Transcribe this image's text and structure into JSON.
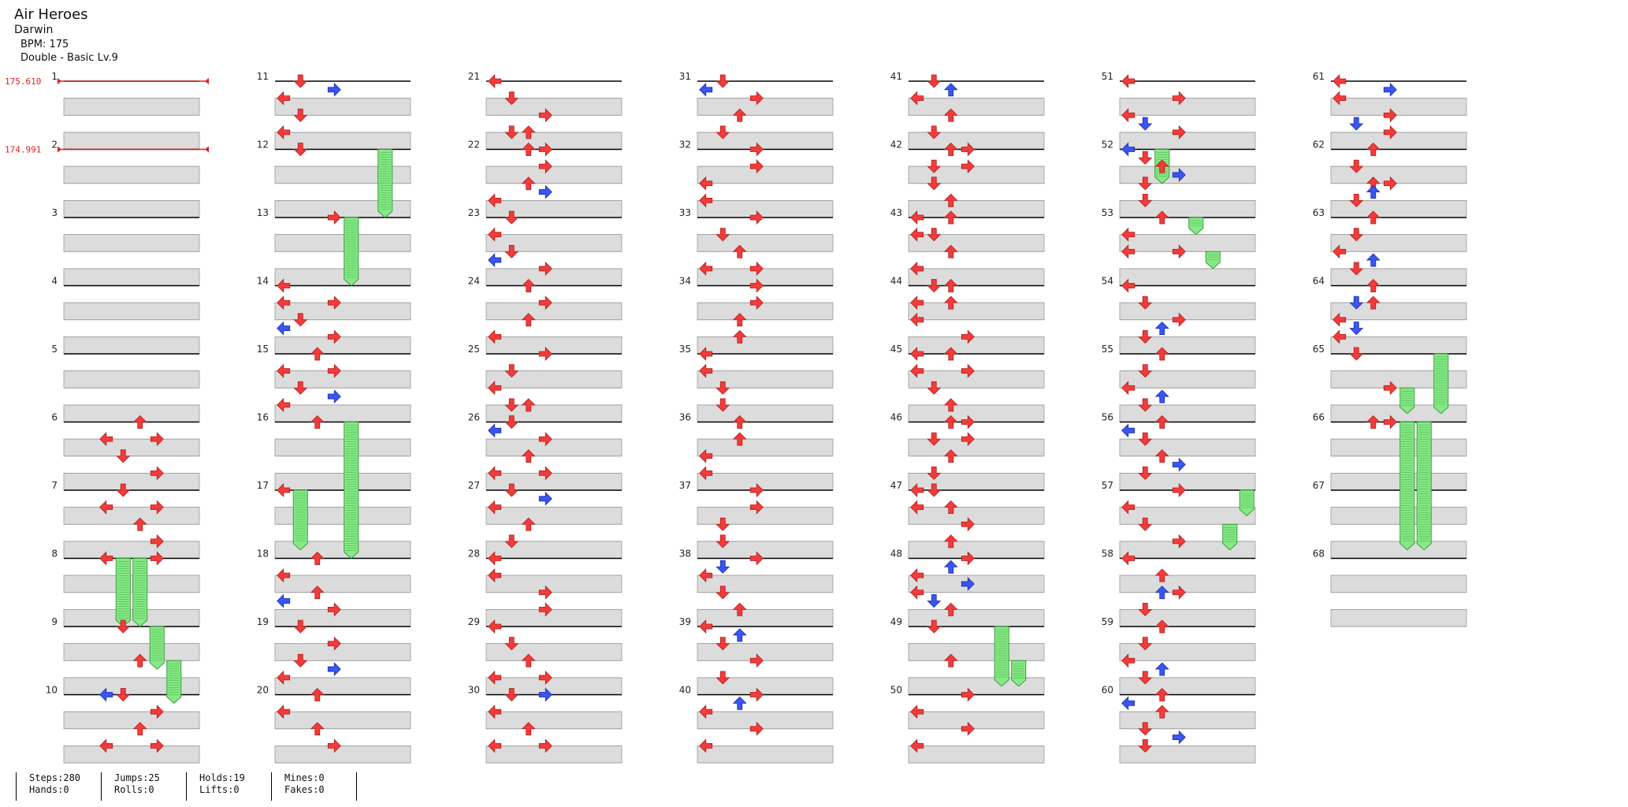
{
  "song": {
    "title": "Air Heroes",
    "artist": "Darwin",
    "bpm": "BPM: 175",
    "difficulty": "Double - Basic Lv.9"
  },
  "bpm_changes": [
    {
      "measure": 1,
      "label": "175.610"
    },
    {
      "measure": 2,
      "label": "174.991"
    }
  ],
  "measures_total": 68,
  "colors": {
    "note_red": "#f23b3b",
    "note_blue": "#3a55f0",
    "hold_green": "#86e886",
    "bpm_line": "#dd2222"
  },
  "notes": [
    {
      "m": 6,
      "b": 0,
      "d": "U"
    },
    {
      "m": 6,
      "b": 1,
      "d": "R"
    },
    {
      "m": 6,
      "b": 1,
      "d": "L"
    },
    {
      "m": 6,
      "b": 2,
      "d": "D"
    },
    {
      "m": 6,
      "b": 3,
      "d": "R"
    },
    {
      "m": 7,
      "b": 0,
      "d": "D"
    },
    {
      "m": 7,
      "b": 1,
      "d": "R"
    },
    {
      "m": 7,
      "b": 1,
      "d": "L"
    },
    {
      "m": 7,
      "b": 2,
      "d": "U"
    },
    {
      "m": 7,
      "b": 3,
      "d": "R"
    },
    {
      "m": 8,
      "b": 0,
      "d": "R"
    },
    {
      "m": 8,
      "b": 0,
      "d": "L"
    },
    {
      "m": 9,
      "b": 0,
      "d": "D"
    },
    {
      "m": 9,
      "b": 2,
      "d": "U"
    },
    {
      "m": 10,
      "b": 0,
      "d": "D"
    },
    {
      "m": 10,
      "b": 0,
      "d": "L",
      "c": "b"
    },
    {
      "m": 10,
      "b": 1,
      "d": "R"
    },
    {
      "m": 10,
      "b": 2,
      "d": "U"
    },
    {
      "m": 10,
      "b": 3,
      "d": "L"
    },
    {
      "m": 10,
      "b": 3,
      "d": "R"
    },
    {
      "m": 11,
      "b": 0,
      "d": "D"
    },
    {
      "m": 11,
      "b": 0.5,
      "d": "R",
      "c": "b"
    },
    {
      "m": 11,
      "b": 1,
      "d": "L"
    },
    {
      "m": 11,
      "b": 2,
      "d": "D"
    },
    {
      "m": 11,
      "b": 3,
      "d": "L"
    },
    {
      "m": 12,
      "b": 0,
      "d": "D"
    },
    {
      "m": 13,
      "b": 0,
      "d": "R"
    },
    {
      "m": 14,
      "b": 0,
      "d": "L"
    },
    {
      "m": 14,
      "b": 1,
      "d": "L"
    },
    {
      "m": 14,
      "b": 1,
      "d": "R"
    },
    {
      "m": 14,
      "b": 2,
      "d": "D"
    },
    {
      "m": 14,
      "b": 2.5,
      "d": "L",
      "c": "b"
    },
    {
      "m": 14,
      "b": 3,
      "d": "R"
    },
    {
      "m": 15,
      "b": 0,
      "d": "U"
    },
    {
      "m": 15,
      "b": 1,
      "d": "L"
    },
    {
      "m": 15,
      "b": 1,
      "d": "R"
    },
    {
      "m": 15,
      "b": 2,
      "d": "D"
    },
    {
      "m": 15,
      "b": 2.5,
      "d": "R",
      "c": "b"
    },
    {
      "m": 15,
      "b": 3,
      "d": "L"
    },
    {
      "m": 16,
      "b": 0,
      "d": "U"
    },
    {
      "m": 17,
      "b": 0,
      "d": "L"
    },
    {
      "m": 18,
      "b": 0,
      "d": "U"
    },
    {
      "m": 18,
      "b": 1,
      "d": "L"
    },
    {
      "m": 18,
      "b": 2,
      "d": "U"
    },
    {
      "m": 18,
      "b": 2.5,
      "d": "L",
      "c": "b"
    },
    {
      "m": 18,
      "b": 3,
      "d": "R"
    },
    {
      "m": 19,
      "b": 0,
      "d": "D"
    },
    {
      "m": 19,
      "b": 1,
      "d": "R"
    },
    {
      "m": 19,
      "b": 2,
      "d": "D"
    },
    {
      "m": 19,
      "b": 2.5,
      "d": "R",
      "c": "b"
    },
    {
      "m": 19,
      "b": 3,
      "d": "L"
    },
    {
      "m": 20,
      "b": 0,
      "d": "U"
    },
    {
      "m": 20,
      "b": 1,
      "d": "L"
    },
    {
      "m": 20,
      "b": 2,
      "d": "U"
    },
    {
      "m": 20,
      "b": 3,
      "d": "R"
    },
    {
      "m": 21,
      "b": 0,
      "d": "L"
    },
    {
      "m": 21,
      "b": 1,
      "d": "D"
    },
    {
      "m": 21,
      "b": 2,
      "d": "R"
    },
    {
      "m": 21,
      "b": 3,
      "d": "D"
    },
    {
      "m": 21,
      "b": 3,
      "d": "U"
    },
    {
      "m": 22,
      "b": 0,
      "d": "U"
    },
    {
      "m": 22,
      "b": 0,
      "d": "R"
    },
    {
      "m": 22,
      "b": 1,
      "d": "R"
    },
    {
      "m": 22,
      "b": 2,
      "d": "U"
    },
    {
      "m": 22,
      "b": 2.5,
      "d": "R",
      "c": "b"
    },
    {
      "m": 22,
      "b": 3,
      "d": "L"
    },
    {
      "m": 23,
      "b": 0,
      "d": "D"
    },
    {
      "m": 23,
      "b": 1,
      "d": "L"
    },
    {
      "m": 23,
      "b": 2,
      "d": "D"
    },
    {
      "m": 23,
      "b": 2.5,
      "d": "L",
      "c": "b"
    },
    {
      "m": 23,
      "b": 3,
      "d": "R"
    },
    {
      "m": 24,
      "b": 0,
      "d": "U"
    },
    {
      "m": 24,
      "b": 1,
      "d": "R"
    },
    {
      "m": 24,
      "b": 2,
      "d": "U"
    },
    {
      "m": 24,
      "b": 3,
      "d": "L"
    },
    {
      "m": 25,
      "b": 0,
      "d": "R"
    },
    {
      "m": 25,
      "b": 1,
      "d": "D"
    },
    {
      "m": 25,
      "b": 2,
      "d": "L"
    },
    {
      "m": 25,
      "b": 3,
      "d": "D"
    },
    {
      "m": 25,
      "b": 3,
      "d": "U"
    },
    {
      "m": 26,
      "b": 0,
      "d": "D"
    },
    {
      "m": 26,
      "b": 0.5,
      "d": "L",
      "c": "b"
    },
    {
      "m": 26,
      "b": 1,
      "d": "R"
    },
    {
      "m": 26,
      "b": 2,
      "d": "U"
    },
    {
      "m": 26,
      "b": 3,
      "d": "L"
    },
    {
      "m": 26,
      "b": 3,
      "d": "R"
    },
    {
      "m": 27,
      "b": 0,
      "d": "D"
    },
    {
      "m": 27,
      "b": 0.5,
      "d": "R",
      "c": "b"
    },
    {
      "m": 27,
      "b": 1,
      "d": "L"
    },
    {
      "m": 27,
      "b": 2,
      "d": "U"
    },
    {
      "m": 27,
      "b": 3,
      "d": "D"
    },
    {
      "m": 28,
      "b": 0,
      "d": "L"
    },
    {
      "m": 28,
      "b": 1,
      "d": "L"
    },
    {
      "m": 28,
      "b": 2,
      "d": "R"
    },
    {
      "m": 28,
      "b": 3,
      "d": "R"
    },
    {
      "m": 29,
      "b": 0,
      "d": "L"
    },
    {
      "m": 29,
      "b": 1,
      "d": "D"
    },
    {
      "m": 29,
      "b": 2,
      "d": "U"
    },
    {
      "m": 29,
      "b": 3,
      "d": "L"
    },
    {
      "m": 29,
      "b": 3,
      "d": "R"
    },
    {
      "m": 30,
      "b": 0,
      "d": "D"
    },
    {
      "m": 30,
      "b": 0,
      "d": "R",
      "c": "b"
    },
    {
      "m": 30,
      "b": 1,
      "d": "L"
    },
    {
      "m": 30,
      "b": 2,
      "d": "U"
    },
    {
      "m": 30,
      "b": 3,
      "d": "L"
    },
    {
      "m": 30,
      "b": 3,
      "d": "R"
    },
    {
      "m": 31,
      "b": 0,
      "d": "D"
    },
    {
      "m": 31,
      "b": 0.5,
      "d": "L",
      "c": "b"
    },
    {
      "m": 31,
      "b": 1,
      "d": "R"
    },
    {
      "m": 31,
      "b": 2,
      "d": "U"
    },
    {
      "m": 31,
      "b": 3,
      "d": "D"
    },
    {
      "m": 32,
      "b": 0,
      "d": "R"
    },
    {
      "m": 32,
      "b": 1,
      "d": "R"
    },
    {
      "m": 32,
      "b": 2,
      "d": "L"
    },
    {
      "m": 32,
      "b": 3,
      "d": "L"
    },
    {
      "m": 33,
      "b": 0,
      "d": "R"
    },
    {
      "m": 33,
      "b": 1,
      "d": "D"
    },
    {
      "m": 33,
      "b": 2,
      "d": "U"
    },
    {
      "m": 33,
      "b": 3,
      "d": "L"
    },
    {
      "m": 33,
      "b": 3,
      "d": "R"
    },
    {
      "m": 34,
      "b": 0,
      "d": "R"
    },
    {
      "m": 34,
      "b": 1,
      "d": "R"
    },
    {
      "m": 34,
      "b": 2,
      "d": "U"
    },
    {
      "m": 34,
      "b": 3,
      "d": "U"
    },
    {
      "m": 35,
      "b": 0,
      "d": "L"
    },
    {
      "m": 35,
      "b": 1,
      "d": "L"
    },
    {
      "m": 35,
      "b": 2,
      "d": "D"
    },
    {
      "m": 35,
      "b": 3,
      "d": "D"
    },
    {
      "m": 36,
      "b": 0,
      "d": "U"
    },
    {
      "m": 36,
      "b": 1,
      "d": "U"
    },
    {
      "m": 36,
      "b": 2,
      "d": "L"
    },
    {
      "m": 36,
      "b": 3,
      "d": "L"
    },
    {
      "m": 37,
      "b": 0,
      "d": "R"
    },
    {
      "m": 37,
      "b": 1,
      "d": "R"
    },
    {
      "m": 37,
      "b": 2,
      "d": "D"
    },
    {
      "m": 37,
      "b": 3,
      "d": "D"
    },
    {
      "m": 38,
      "b": 0,
      "d": "R"
    },
    {
      "m": 38,
      "b": 0.5,
      "d": "D",
      "c": "b"
    },
    {
      "m": 38,
      "b": 1,
      "d": "L"
    },
    {
      "m": 38,
      "b": 2,
      "d": "D"
    },
    {
      "m": 38,
      "b": 3,
      "d": "U"
    },
    {
      "m": 39,
      "b": 0,
      "d": "L"
    },
    {
      "m": 39,
      "b": 0.5,
      "d": "U",
      "c": "b"
    },
    {
      "m": 39,
      "b": 1,
      "d": "D"
    },
    {
      "m": 39,
      "b": 2,
      "d": "R"
    },
    {
      "m": 39,
      "b": 3,
      "d": "D"
    },
    {
      "m": 40,
      "b": 0,
      "d": "R"
    },
    {
      "m": 40,
      "b": 0.5,
      "d": "U",
      "c": "b"
    },
    {
      "m": 40,
      "b": 1,
      "d": "L"
    },
    {
      "m": 40,
      "b": 2,
      "d": "R"
    },
    {
      "m": 40,
      "b": 3,
      "d": "L"
    },
    {
      "m": 41,
      "b": 0,
      "d": "D"
    },
    {
      "m": 41,
      "b": 0.5,
      "d": "U",
      "c": "b"
    },
    {
      "m": 41,
      "b": 1,
      "d": "L"
    },
    {
      "m": 41,
      "b": 2,
      "d": "U"
    },
    {
      "m": 41,
      "b": 3,
      "d": "D"
    },
    {
      "m": 42,
      "b": 0,
      "d": "U"
    },
    {
      "m": 42,
      "b": 0,
      "d": "R"
    },
    {
      "m": 42,
      "b": 1,
      "d": "D"
    },
    {
      "m": 42,
      "b": 1,
      "d": "R"
    },
    {
      "m": 42,
      "b": 2,
      "d": "D"
    },
    {
      "m": 42,
      "b": 3,
      "d": "U"
    },
    {
      "m": 43,
      "b": 0,
      "d": "L"
    },
    {
      "m": 43,
      "b": 0,
      "d": "U"
    },
    {
      "m": 43,
      "b": 1,
      "d": "L"
    },
    {
      "m": 43,
      "b": 1,
      "d": "D"
    },
    {
      "m": 43,
      "b": 2,
      "d": "U"
    },
    {
      "m": 43,
      "b": 3,
      "d": "L"
    },
    {
      "m": 44,
      "b": 0,
      "d": "D"
    },
    {
      "m": 44,
      "b": 0,
      "d": "U"
    },
    {
      "m": 44,
      "b": 1,
      "d": "U"
    },
    {
      "m": 44,
      "b": 1,
      "d": "L"
    },
    {
      "m": 44,
      "b": 2,
      "d": "L"
    },
    {
      "m": 44,
      "b": 3,
      "d": "R"
    },
    {
      "m": 45,
      "b": 0,
      "d": "U"
    },
    {
      "m": 45,
      "b": 0,
      "d": "L"
    },
    {
      "m": 45,
      "b": 1,
      "d": "L"
    },
    {
      "m": 45,
      "b": 1,
      "d": "R"
    },
    {
      "m": 45,
      "b": 2,
      "d": "D"
    },
    {
      "m": 45,
      "b": 3,
      "d": "U"
    },
    {
      "m": 46,
      "b": 0,
      "d": "U"
    },
    {
      "m": 46,
      "b": 0,
      "d": "R"
    },
    {
      "m": 46,
      "b": 1,
      "d": "R"
    },
    {
      "m": 46,
      "b": 1,
      "d": "D"
    },
    {
      "m": 46,
      "b": 2,
      "d": "U"
    },
    {
      "m": 46,
      "b": 3,
      "d": "D"
    },
    {
      "m": 47,
      "b": 0,
      "d": "L"
    },
    {
      "m": 47,
      "b": 0,
      "d": "D"
    },
    {
      "m": 47,
      "b": 1,
      "d": "L"
    },
    {
      "m": 47,
      "b": 1,
      "d": "U"
    },
    {
      "m": 47,
      "b": 2,
      "d": "R"
    },
    {
      "m": 47,
      "b": 3,
      "d": "U"
    },
    {
      "m": 48,
      "b": 0,
      "d": "R"
    },
    {
      "m": 48,
      "b": 0.5,
      "d": "U",
      "c": "b"
    },
    {
      "m": 48,
      "b": 1,
      "d": "L"
    },
    {
      "m": 48,
      "b": 1.5,
      "d": "R",
      "c": "b"
    },
    {
      "m": 48,
      "b": 2,
      "d": "L"
    },
    {
      "m": 48,
      "b": 2.5,
      "d": "D",
      "c": "b"
    },
    {
      "m": 48,
      "b": 3,
      "d": "U"
    },
    {
      "m": 49,
      "b": 0,
      "d": "D"
    },
    {
      "m": 49,
      "b": 2,
      "d": "U"
    },
    {
      "m": 50,
      "b": 0,
      "d": "R"
    },
    {
      "m": 50,
      "b": 1,
      "d": "L"
    },
    {
      "m": 50,
      "b": 2,
      "d": "R"
    },
    {
      "m": 50,
      "b": 3,
      "d": "L"
    },
    {
      "m": 51,
      "b": 0,
      "d": "L"
    },
    {
      "m": 51,
      "b": 1,
      "d": "R"
    },
    {
      "m": 51,
      "b": 2,
      "d": "L"
    },
    {
      "m": 51,
      "b": 2.5,
      "d": "D",
      "c": "b"
    },
    {
      "m": 51,
      "b": 3,
      "d": "R"
    },
    {
      "m": 52,
      "b": 0,
      "d": "L",
      "c": "b"
    },
    {
      "m": 52,
      "b": 0.5,
      "d": "D"
    },
    {
      "m": 52,
      "b": 1,
      "d": "U"
    },
    {
      "m": 52,
      "b": 1.5,
      "d": "R",
      "c": "b"
    },
    {
      "m": 52,
      "b": 2,
      "d": "D"
    },
    {
      "m": 52,
      "b": 3,
      "d": "D"
    },
    {
      "m": 53,
      "b": 0,
      "d": "U"
    },
    {
      "m": 53,
      "b": 1,
      "d": "L"
    },
    {
      "m": 53,
      "b": 2,
      "d": "R"
    },
    {
      "m": 53,
      "b": 2,
      "d": "L"
    },
    {
      "m": 54,
      "b": 0,
      "d": "L"
    },
    {
      "m": 54,
      "b": 1,
      "d": "D"
    },
    {
      "m": 54,
      "b": 2,
      "d": "R"
    },
    {
      "m": 54,
      "b": 2.5,
      "d": "U",
      "c": "b"
    },
    {
      "m": 54,
      "b": 3,
      "d": "D"
    },
    {
      "m": 55,
      "b": 0,
      "d": "U"
    },
    {
      "m": 55,
      "b": 1,
      "d": "D"
    },
    {
      "m": 55,
      "b": 2,
      "d": "L"
    },
    {
      "m": 55,
      "b": 2.5,
      "d": "U",
      "c": "b"
    },
    {
      "m": 55,
      "b": 3,
      "d": "D"
    },
    {
      "m": 56,
      "b": 0,
      "d": "U"
    },
    {
      "m": 56,
      "b": 0.5,
      "d": "L",
      "c": "b"
    },
    {
      "m": 56,
      "b": 1,
      "d": "D"
    },
    {
      "m": 56,
      "b": 2,
      "d": "U"
    },
    {
      "m": 56,
      "b": 2.5,
      "d": "R",
      "c": "b"
    },
    {
      "m": 56,
      "b": 3,
      "d": "D"
    },
    {
      "m": 57,
      "b": 0,
      "d": "R"
    },
    {
      "m": 57,
      "b": 1,
      "d": "L"
    },
    {
      "m": 57,
      "b": 2,
      "d": "D"
    },
    {
      "m": 57,
      "b": 3,
      "d": "R"
    },
    {
      "m": 58,
      "b": 0,
      "d": "L"
    },
    {
      "m": 58,
      "b": 1,
      "d": "U"
    },
    {
      "m": 58,
      "b": 2,
      "d": "R"
    },
    {
      "m": 58,
      "b": 2,
      "d": "U",
      "c": "b"
    },
    {
      "m": 58,
      "b": 3,
      "d": "D"
    },
    {
      "m": 59,
      "b": 0,
      "d": "U"
    },
    {
      "m": 59,
      "b": 1,
      "d": "D"
    },
    {
      "m": 59,
      "b": 2,
      "d": "L"
    },
    {
      "m": 59,
      "b": 2.5,
      "d": "U",
      "c": "b"
    },
    {
      "m": 59,
      "b": 3,
      "d": "D"
    },
    {
      "m": 60,
      "b": 0,
      "d": "U"
    },
    {
      "m": 60,
      "b": 0.5,
      "d": "L",
      "c": "b"
    },
    {
      "m": 60,
      "b": 1,
      "d": "U"
    },
    {
      "m": 60,
      "b": 2,
      "d": "D"
    },
    {
      "m": 60,
      "b": 2.5,
      "d": "R",
      "c": "b"
    },
    {
      "m": 60,
      "b": 3,
      "d": "D"
    },
    {
      "m": 61,
      "b": 0,
      "d": "L"
    },
    {
      "m": 61,
      "b": 0.5,
      "d": "R",
      "c": "b"
    },
    {
      "m": 61,
      "b": 1,
      "d": "L"
    },
    {
      "m": 61,
      "b": 2,
      "d": "R"
    },
    {
      "m": 61,
      "b": 2.5,
      "d": "D",
      "c": "b"
    },
    {
      "m": 61,
      "b": 3,
      "d": "R"
    },
    {
      "m": 62,
      "b": 0,
      "d": "U"
    },
    {
      "m": 62,
      "b": 1,
      "d": "D"
    },
    {
      "m": 62,
      "b": 2,
      "d": "U"
    },
    {
      "m": 62,
      "b": 2,
      "d": "R"
    },
    {
      "m": 62,
      "b": 2.5,
      "d": "U",
      "c": "b"
    },
    {
      "m": 62,
      "b": 3,
      "d": "D"
    },
    {
      "m": 63,
      "b": 0,
      "d": "U"
    },
    {
      "m": 63,
      "b": 1,
      "d": "D"
    },
    {
      "m": 63,
      "b": 2,
      "d": "L"
    },
    {
      "m": 63,
      "b": 2.5,
      "d": "U",
      "c": "b"
    },
    {
      "m": 63,
      "b": 3,
      "d": "D"
    },
    {
      "m": 64,
      "b": 0,
      "d": "U"
    },
    {
      "m": 64,
      "b": 1,
      "d": "U"
    },
    {
      "m": 64,
      "b": 1,
      "d": "D",
      "c": "b"
    },
    {
      "m": 64,
      "b": 2,
      "d": "L"
    },
    {
      "m": 64,
      "b": 2.5,
      "d": "D",
      "c": "b"
    },
    {
      "m": 64,
      "b": 3,
      "d": "L"
    },
    {
      "m": 65,
      "b": 0,
      "d": "D"
    },
    {
      "m": 65,
      "b": 2,
      "d": "R"
    },
    {
      "m": 66,
      "b": 0,
      "d": "R"
    },
    {
      "m": 66,
      "b": 0,
      "d": "U"
    }
  ],
  "holds": [
    {
      "m": 8,
      "b": 0,
      "len": 4,
      "lane": 3
    },
    {
      "m": 8,
      "b": 0,
      "len": 4,
      "lane": 4
    },
    {
      "m": 9,
      "b": 0,
      "len": 2.5,
      "lane": 5
    },
    {
      "m": 9,
      "b": 2,
      "len": 2.5,
      "lane": 6
    },
    {
      "m": 12,
      "b": 0,
      "len": 4,
      "lane": 6
    },
    {
      "m": 13,
      "b": 0,
      "len": 4,
      "lane": 4
    },
    {
      "m": 16,
      "b": 0,
      "len": 8,
      "lane": 4
    },
    {
      "m": 17,
      "b": 0,
      "len": 3.5,
      "lane": 1
    },
    {
      "m": 49,
      "b": 0,
      "len": 3.5,
      "lane": 5
    },
    {
      "m": 49,
      "b": 2,
      "len": 1.5,
      "lane": 6
    },
    {
      "m": 52,
      "b": 0,
      "len": 2,
      "lane": 2
    },
    {
      "m": 53,
      "b": 0,
      "len": 1,
      "lane": 4
    },
    {
      "m": 53,
      "b": 2,
      "len": 1,
      "lane": 5
    },
    {
      "m": 57,
      "b": 0,
      "len": 1.5,
      "lane": 7
    },
    {
      "m": 57,
      "b": 2,
      "len": 1.5,
      "lane": 6
    },
    {
      "m": 65,
      "b": 0,
      "len": 3.5,
      "lane": 6
    },
    {
      "m": 65,
      "b": 2,
      "len": 1.5,
      "lane": 4
    },
    {
      "m": 66,
      "b": 0,
      "len": 7.5,
      "lane": 4
    },
    {
      "m": 66,
      "b": 0,
      "len": 7.5,
      "lane": 5
    }
  ],
  "stats": {
    "steps": "Steps:280",
    "hands": "Hands:0",
    "jumps": "Jumps:25",
    "rolls": "Rolls:0",
    "holds": "Holds:19",
    "lifts": "Lifts:0",
    "mines": "Mines:0",
    "fakes": "Fakes:0"
  }
}
